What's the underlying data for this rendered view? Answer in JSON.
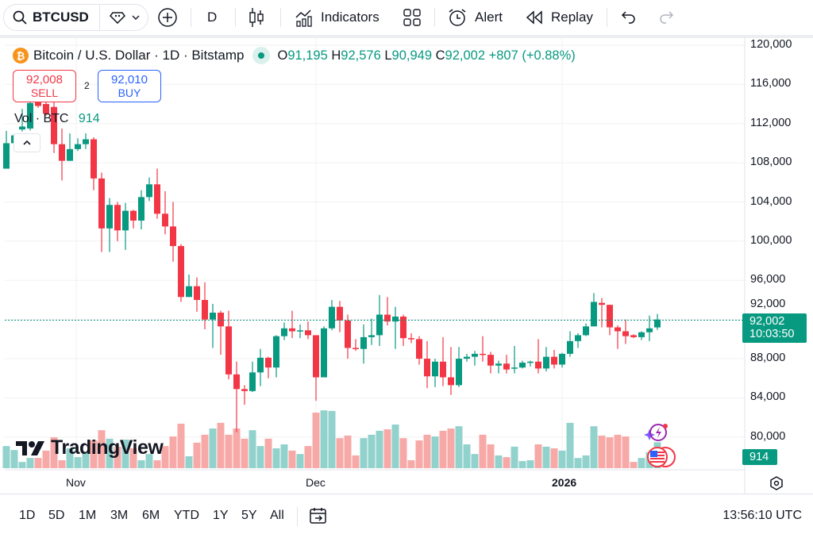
{
  "toolbar": {
    "symbol": "BTCUSD",
    "interval": "D",
    "indicators_label": "Indicators",
    "alert_label": "Alert",
    "replay_label": "Replay"
  },
  "legend": {
    "title": "Bitcoin / U.S. Dollar · 1D · Bitstamp",
    "o_label": "O",
    "o": "91,195",
    "h_label": "H",
    "h": "92,576",
    "l_label": "L",
    "l": "90,949",
    "c_label": "C",
    "c": "92,002",
    "change": "+807 (+0.88%)",
    "sell_price": "92,008",
    "sell_label": "SELL",
    "spread": "2",
    "buy_price": "92,010",
    "buy_label": "BUY",
    "vol_label": "Vol · BTC",
    "vol_value": "914"
  },
  "price_label": {
    "value": "92,002",
    "countdown": "10:03:50"
  },
  "volume_label": "914",
  "watermark": "TradingView",
  "colors": {
    "up": "#089981",
    "down": "#f23645",
    "up_vol": "#92d2cc",
    "down_vol": "#f7a9a7",
    "accent": "#2962ff"
  },
  "bottom": {
    "ranges": [
      "1D",
      "5D",
      "1M",
      "3M",
      "6M",
      "YTD",
      "1Y",
      "5Y",
      "All"
    ],
    "clock": "13:56:10 UTC"
  },
  "chart_data": {
    "type": "candlestick",
    "title": "Bitcoin / U.S. Dollar · 1D · Bitstamp",
    "y_ticks": [
      "120,000",
      "116,000",
      "112,000",
      "108,000",
      "104,000",
      "100,000",
      "96,000",
      "92,000",
      "88,000",
      "84,000",
      "80,000"
    ],
    "ylim": [
      79000,
      121000
    ],
    "x_ticks": [
      {
        "label": "Nov",
        "index": 9
      },
      {
        "label": "Dec",
        "index": 39
      },
      {
        "label": "2026",
        "index": 70
      }
    ],
    "grid": true,
    "candles": [
      [
        107400,
        111250,
        107400,
        110000
      ],
      [
        110000,
        110900,
        109800,
        110800
      ],
      [
        111400,
        113500,
        111200,
        111700
      ],
      [
        111500,
        115000,
        111300,
        114100
      ],
      [
        114200,
        115200,
        113600,
        113800
      ],
      [
        114000,
        114800,
        112800,
        113000
      ],
      [
        113700,
        114300,
        109000,
        109900
      ],
      [
        109900,
        111500,
        106200,
        108200
      ],
      [
        108200,
        111000,
        108200,
        109400
      ],
      [
        109400,
        110500,
        109200,
        109900
      ],
      [
        109900,
        111000,
        109400,
        110400
      ],
      [
        110400,
        110600,
        105200,
        106400
      ],
      [
        106400,
        107000,
        98900,
        101300
      ],
      [
        101300,
        104400,
        98900,
        103700
      ],
      [
        103700,
        104000,
        100000,
        101100
      ],
      [
        101100,
        103900,
        99100,
        103100
      ],
      [
        103100,
        103200,
        101300,
        102100
      ],
      [
        102100,
        105200,
        101200,
        104500
      ],
      [
        104500,
        106500,
        104100,
        105800
      ],
      [
        105800,
        107400,
        102300,
        102800
      ],
      [
        102800,
        105100,
        100700,
        101500
      ],
      [
        101500,
        104000,
        97900,
        99500
      ],
      [
        99500,
        99700,
        93800,
        94300
      ],
      [
        94300,
        96600,
        94300,
        95400
      ],
      [
        95400,
        96300,
        92800,
        94000
      ],
      [
        94000,
        95800,
        91000,
        92000
      ],
      [
        92000,
        93600,
        89100,
        92700
      ],
      [
        92700,
        92900,
        88400,
        91300
      ],
      [
        91300,
        92900,
        85900,
        86400
      ],
      [
        86400,
        87700,
        80500,
        84900
      ],
      [
        84900,
        85300,
        83300,
        84700
      ],
      [
        84700,
        87700,
        84600,
        86600
      ],
      [
        86600,
        89000,
        85200,
        88100
      ],
      [
        88100,
        88200,
        86000,
        87100
      ],
      [
        87100,
        90400,
        86100,
        90300
      ],
      [
        90300,
        91700,
        89900,
        91100
      ],
      [
        91100,
        92900,
        90100,
        90800
      ],
      [
        90800,
        91500,
        90100,
        90900
      ],
      [
        90900,
        91800,
        90000,
        90400
      ],
      [
        90400,
        90400,
        83700,
        86100
      ],
      [
        86100,
        91300,
        86100,
        91100
      ],
      [
        91100,
        94000,
        90900,
        93300
      ],
      [
        93300,
        93900,
        90700,
        91900
      ],
      [
        91900,
        92500,
        88000,
        89100
      ],
      [
        89100,
        90000,
        88800,
        89050
      ],
      [
        89000,
        91500,
        87500,
        90200
      ],
      [
        90200,
        92100,
        89400,
        90400
      ],
      [
        90400,
        94500,
        89300,
        92500
      ],
      [
        92500,
        94300,
        91400,
        91800
      ],
      [
        91800,
        93300,
        89000,
        92300
      ],
      [
        92300,
        92500,
        89300,
        90100
      ],
      [
        90100,
        90600,
        89600,
        90000
      ],
      [
        90000,
        90300,
        87400,
        88000
      ],
      [
        88000,
        89800,
        85000,
        86200
      ],
      [
        86200,
        88000,
        85100,
        87700
      ],
      [
        87700,
        90200,
        85200,
        86100
      ],
      [
        86100,
        89200,
        84300,
        85300
      ],
      [
        85300,
        89200,
        85100,
        88000
      ],
      [
        88000,
        88500,
        87700,
        88200
      ],
      [
        88200,
        88800,
        87300,
        88500
      ],
      [
        88500,
        90300,
        87700,
        88450
      ],
      [
        88400,
        88700,
        86500,
        87300
      ],
      [
        87300,
        87800,
        86500,
        87500
      ],
      [
        87500,
        88400,
        86500,
        86900
      ],
      [
        87000,
        89300,
        86500,
        87100
      ],
      [
        87100,
        87800,
        87000,
        87600
      ],
      [
        87600,
        87800,
        87200,
        87700
      ],
      [
        87700,
        90000,
        86500,
        87000
      ],
      [
        87000,
        89200,
        86700,
        88200
      ],
      [
        88200,
        88900,
        87000,
        87400
      ],
      [
        87400,
        88600,
        87100,
        88500
      ],
      [
        88500,
        90800,
        88200,
        89800
      ],
      [
        89800,
        90600,
        89100,
        90400
      ],
      [
        90400,
        91600,
        90300,
        91300
      ],
      [
        91300,
        94700,
        91300,
        93800
      ],
      [
        93700,
        94200,
        91200,
        93500
      ],
      [
        93500,
        93500,
        90400,
        91200
      ],
      [
        91200,
        91400,
        89000,
        90800
      ],
      [
        90800,
        92000,
        89500,
        90300
      ],
      [
        90400,
        90500,
        90100,
        90200
      ],
      [
        90200,
        90800,
        89900,
        90700
      ],
      [
        90700,
        92400,
        89800,
        91100
      ],
      [
        91195,
        92576,
        90949,
        92002
      ]
    ],
    "candle_fields": [
      "open",
      "high",
      "low",
      "close"
    ],
    "volume": [
      780,
      640,
      220,
      360,
      360,
      620,
      1090,
      280,
      700,
      390,
      560,
      980,
      1340,
      1040,
      760,
      1010,
      700,
      280,
      500,
      280,
      780,
      1120,
      1570,
      420,
      900,
      1180,
      1400,
      1600,
      1180,
      1400,
      1040,
      1340,
      780,
      1040,
      700,
      840,
      620,
      500,
      780,
      1960,
      2040,
      2020,
      1060,
      1150,
      450,
      1060,
      1180,
      1320,
      1370,
      1540,
      1060,
      280,
      980,
      1180,
      1120,
      1320,
      1400,
      1480,
      840,
      500,
      1180,
      840,
      450,
      390,
      760,
      250,
      280,
      840,
      760,
      700,
      620,
      1600,
      360,
      450,
      1480,
      1150,
      1090,
      1180,
      1120,
      220,
      360,
      560,
      914
    ],
    "last_price": 92002
  }
}
